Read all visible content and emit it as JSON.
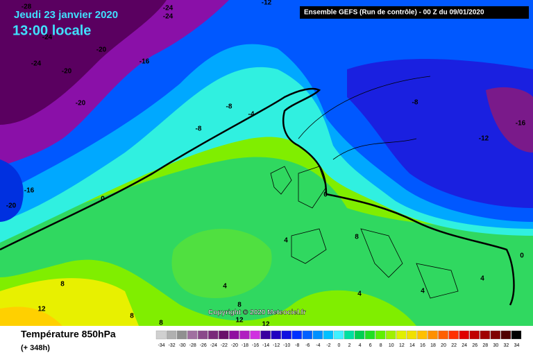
{
  "header": {
    "date": "Jeudi 23 janvier 2020",
    "time": "13:00 locale",
    "run": "Ensemble GEFS  (Run de contrôle)  - 00 Z du 09/01/2020"
  },
  "copyright": "Copyright © 2020 Meteociel.fr",
  "footer": {
    "title": "Température 850hPa",
    "lead": "(+ 348h)"
  },
  "map_labels": [
    -28,
    -24,
    -24,
    -12,
    -24,
    -20,
    -24,
    -20,
    -16,
    -20,
    -8,
    -4,
    -8,
    -8,
    -16,
    -12,
    -16,
    -20,
    0,
    0,
    0,
    4,
    8,
    4,
    4,
    8,
    4,
    4,
    12,
    8,
    8,
    8,
    12,
    12
  ],
  "color_scale": {
    "labels": [
      -34,
      -32,
      -30,
      -28,
      -26,
      -24,
      -22,
      -20,
      -18,
      -16,
      -14,
      -12,
      -10,
      -8,
      -6,
      -4,
      -2,
      0,
      2,
      4,
      6,
      8,
      10,
      12,
      14,
      16,
      18,
      20,
      22,
      24,
      26,
      28,
      30,
      32,
      34
    ],
    "colors": [
      "#d0d0d0",
      "#b0b0b0",
      "#909090",
      "#a070a0",
      "#8a4a8a",
      "#7a2a7a",
      "#6a106a",
      "#9010a0",
      "#b020c0",
      "#d030e0",
      "#3a00a0",
      "#2000c0",
      "#1010e0",
      "#0030ff",
      "#0060ff",
      "#0090ff",
      "#00c0ff",
      "#40f0ff",
      "#00e0a0",
      "#00d050",
      "#20e020",
      "#60f000",
      "#a0f000",
      "#e0f000",
      "#f0e000",
      "#ffc000",
      "#ff9000",
      "#ff6000",
      "#ff3000",
      "#e00000",
      "#c00000",
      "#a00000",
      "#800000",
      "#500000",
      "#000000"
    ]
  }
}
